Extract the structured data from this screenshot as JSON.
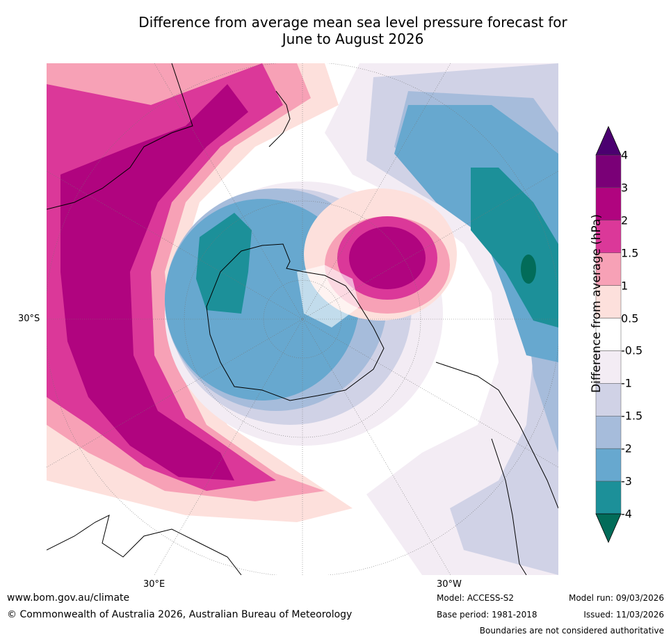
{
  "title": {
    "line1": "Difference from average mean sea level pressure forecast for",
    "line2": "June to August 2026"
  },
  "map": {
    "projection": "south polar stereographic",
    "lat_label": "30°S",
    "lon_labels": [
      "30°E",
      "30°W"
    ]
  },
  "colorbar": {
    "label": "Difference from average (hPa)",
    "ticks": [
      "4",
      "3",
      "2",
      "1.5",
      "1",
      "0.5",
      "-0.5",
      "-1",
      "-1.5",
      "-2",
      "-3",
      "-4"
    ],
    "colors": [
      "#4b0070",
      "#7a0077",
      "#b0047f",
      "#db3899",
      "#f7a1b6",
      "#fde0dc",
      "#ffffff",
      "#f3ecf4",
      "#d0d2e6",
      "#a6bcdb",
      "#67a8cf",
      "#1c9099",
      "#026c59"
    ]
  },
  "footer": {
    "website": "www.bom.gov.au/climate",
    "copyright": "© Commonwealth of Australia 2026, Australian Bureau of Meteorology",
    "model": "Model: ACCESS-S2",
    "base_period": "Base period: 1981-2018",
    "model_run": "Model run: 09/03/2026",
    "issued": "Issued: 11/03/2026",
    "disclaimer": "Boundaries are not considered authoritative"
  }
}
